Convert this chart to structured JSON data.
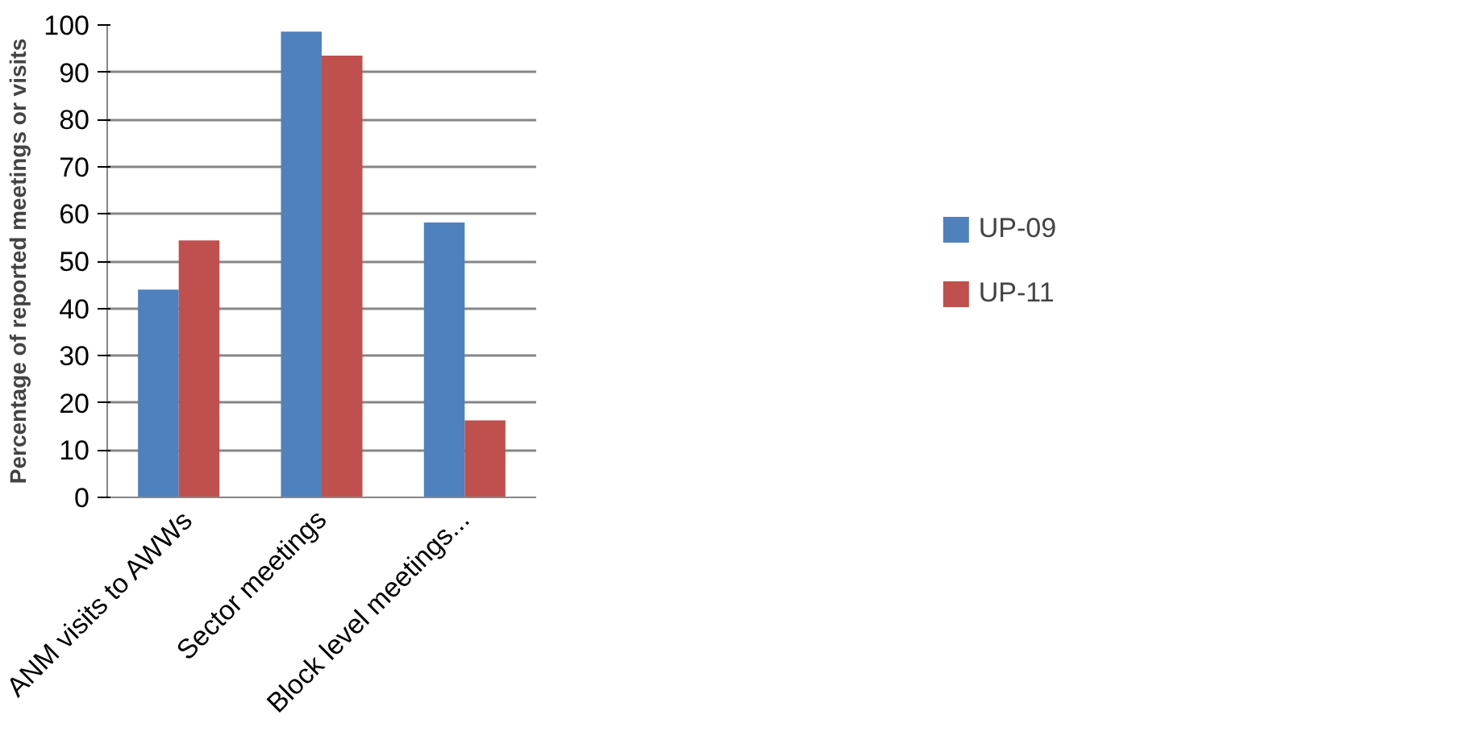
{
  "chart_data": {
    "type": "bar",
    "ylabel": "Percentage of reported meetings or visits",
    "categories": [
      "ANM visits to AWWs",
      "Sector meetings",
      "Block level meetings..."
    ],
    "series": [
      {
        "name": "UP-09",
        "color": "#4f81bd",
        "values": [
          44,
          98.6,
          58.2
        ]
      },
      {
        "name": "UP-11",
        "color": "#c0504d",
        "values": [
          54.4,
          93.5,
          16.3
        ]
      }
    ],
    "ylim": [
      0,
      100
    ],
    "yticks": [
      0,
      10,
      20,
      30,
      40,
      50,
      60,
      70,
      80,
      90,
      100
    ],
    "grid": "y",
    "legend": "right"
  }
}
